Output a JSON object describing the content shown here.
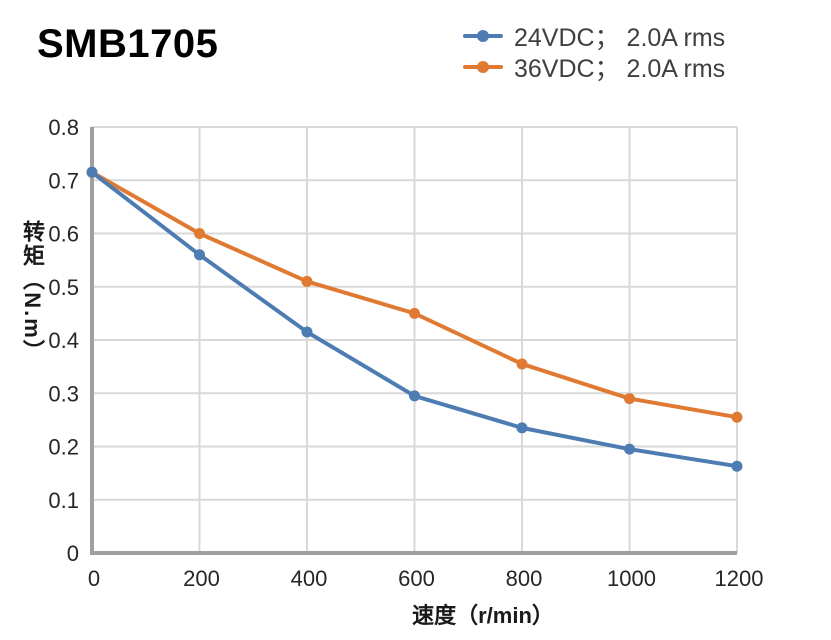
{
  "page": {
    "title": "SMB1705"
  },
  "colors": {
    "series_blue": "#4d7cb3",
    "series_orange": "#e07a33",
    "gridline": "#d9d9d9",
    "axis": "#a0a0a0",
    "tick_text": "#262626",
    "legend_text": "#3f3f3f"
  },
  "chart_data": {
    "type": "line",
    "title": "SMB1705",
    "x": [
      0,
      200,
      400,
      600,
      800,
      1000,
      1200
    ],
    "series": [
      {
        "name": "24VDC； 2.0A rms",
        "color": "#4d7cb3",
        "values": [
          0.715,
          0.56,
          0.415,
          0.295,
          0.235,
          0.195,
          0.163
        ]
      },
      {
        "name": "36VDC； 2.0A rms",
        "color": "#e07a33",
        "values": [
          0.715,
          0.6,
          0.51,
          0.45,
          0.355,
          0.29,
          0.255
        ]
      }
    ],
    "xlabel": "速度（r/min）",
    "ylabel": "转矩（N.m）",
    "xlim": [
      0,
      1200
    ],
    "ylim": [
      0,
      0.8
    ],
    "x_ticks": [
      0,
      200,
      400,
      600,
      800,
      1000,
      1200
    ],
    "x_tick_labels": [
      "0",
      "200",
      "400",
      "600",
      "800",
      "1000",
      "1200"
    ],
    "y_ticks": [
      0,
      0.1,
      0.2,
      0.3,
      0.4,
      0.5,
      0.6,
      0.7,
      0.8
    ],
    "y_tick_labels": [
      "0",
      "0.1",
      "0.2",
      "0.3",
      "0.4",
      "0.5",
      "0.6",
      "0.7",
      "0.8"
    ],
    "grid": true,
    "legend_position": "top-right"
  }
}
